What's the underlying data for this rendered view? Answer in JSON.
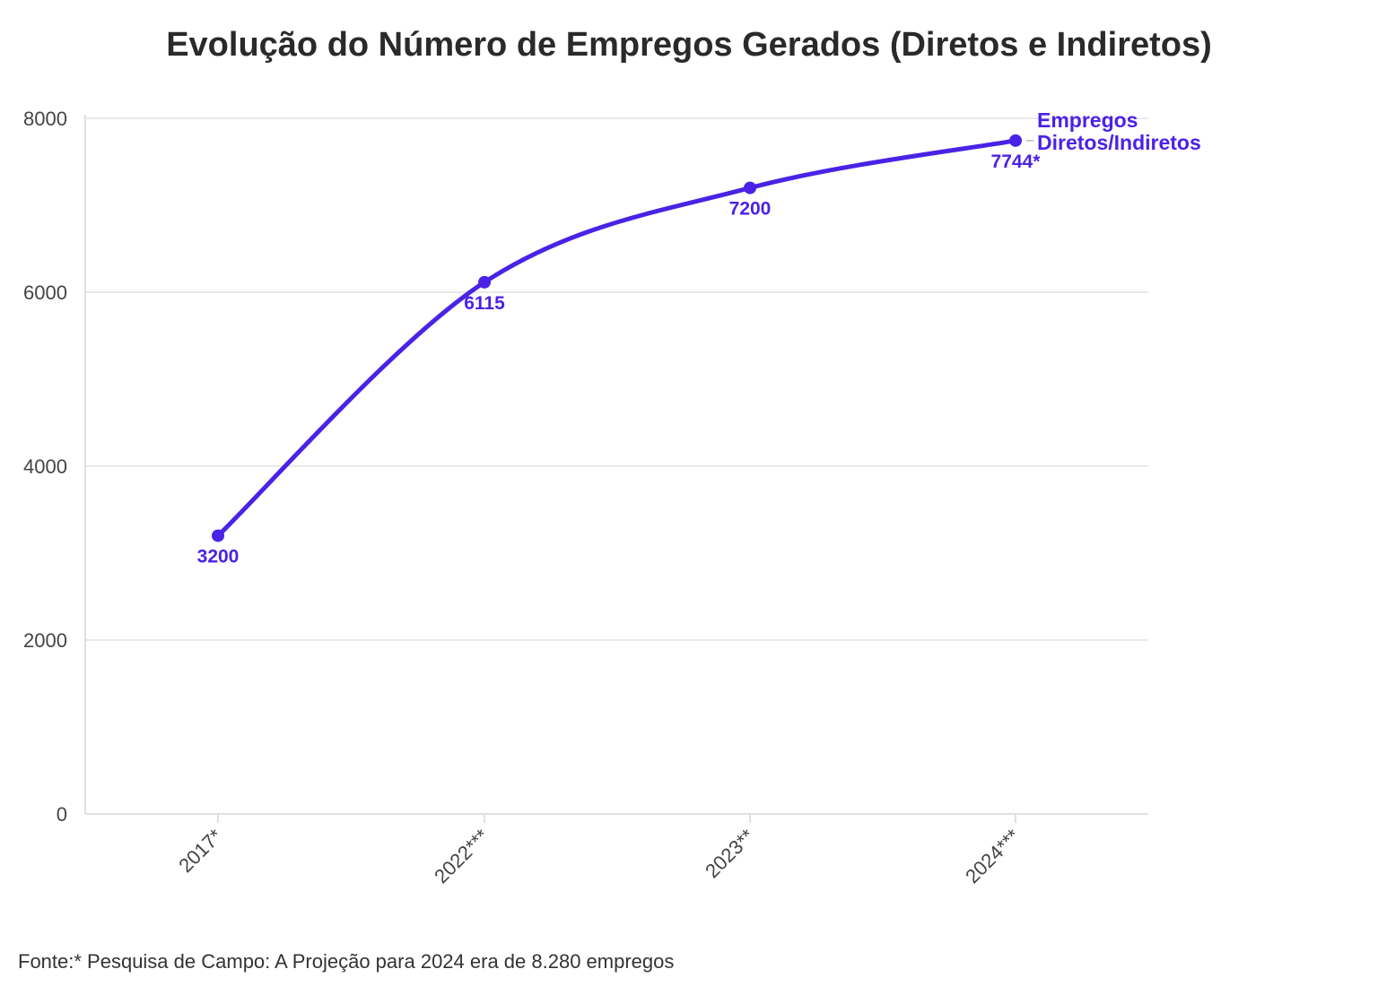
{
  "colors": {
    "series": "#4a22e6",
    "grid": "#e8e8e8",
    "axis": "#e0e0e0",
    "title": "#2a2a2a",
    "tick": "#444444"
  },
  "source_note": "Fonte:* Pesquisa de Campo: A Projeção para 2024 era de 8.280 empregos",
  "chart_data": {
    "type": "line",
    "title": "Evolução do Número de Empregos Gerados (Diretos e Indiretos)",
    "xlabel": "",
    "ylabel": "",
    "categories": [
      "2017*",
      "2022***",
      "2023**",
      "2024***"
    ],
    "ylim": [
      0,
      8000
    ],
    "yticks": [
      0,
      2000,
      4000,
      6000,
      8000
    ],
    "grid": true,
    "curve": "smooth",
    "series": [
      {
        "name": "Empregos Diretos/Indiretos",
        "name_lines": [
          "Empregos",
          "Diretos/Indiretos"
        ],
        "values": [
          3200,
          6115,
          7200,
          7744
        ],
        "labels": [
          "3200",
          "6115",
          "7200",
          "7744*"
        ]
      }
    ]
  }
}
